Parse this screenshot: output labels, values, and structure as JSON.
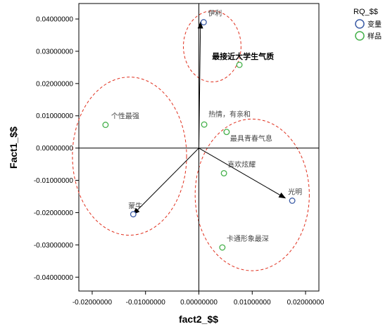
{
  "chart_data": {
    "type": "scatter",
    "xlabel": "fact2_$$",
    "ylabel": "Fact1_$$",
    "xlim": [
      -0.0225,
      0.0225
    ],
    "ylim": [
      -0.0443,
      0.0448
    ],
    "x_ticks": [
      -0.02,
      -0.01,
      0.0,
      0.01,
      0.02
    ],
    "x_tick_labels": [
      "-0.02000000",
      "-0.01000000",
      "0.00000000",
      "0.01000000",
      "0.02000000"
    ],
    "y_ticks": [
      0.04,
      0.03,
      0.02,
      0.01,
      0.0,
      -0.01,
      -0.02,
      -0.03,
      -0.04
    ],
    "y_tick_labels": [
      "0.04000000",
      "0.03000000",
      "0.02000000",
      "0.01000000",
      "0.00000000",
      "-0.01000000",
      "-0.02000000",
      "-0.03000000",
      "-0.04000000"
    ],
    "grid": false,
    "legend": {
      "title": "RQ_$$",
      "position": "top-right",
      "items": [
        {
          "label": "变量",
          "color": "#3b5ba5"
        },
        {
          "label": "样品",
          "color": "#44b04a"
        }
      ]
    },
    "series": [
      {
        "name": "变量",
        "color": "#3b5ba5",
        "points": [
          {
            "x": 0.0009,
            "y": 0.039,
            "label": "伊利"
          },
          {
            "x": -0.0123,
            "y": -0.0205,
            "label": "蒙牛"
          },
          {
            "x": 0.0175,
            "y": -0.0163,
            "label": "光明"
          }
        ]
      },
      {
        "name": "样品",
        "color": "#44b04a",
        "points": [
          {
            "x": 0.0076,
            "y": 0.0258,
            "label": "最接近大学生气质"
          },
          {
            "x": -0.0175,
            "y": 0.0072,
            "label": "个性最强"
          },
          {
            "x": 0.001,
            "y": 0.0073,
            "label": "热情，有亲和"
          },
          {
            "x": 0.0052,
            "y": 0.005,
            "label": "最具青春气息"
          },
          {
            "x": 0.0047,
            "y": -0.0078,
            "label": "喜欢炫耀"
          },
          {
            "x": 0.0044,
            "y": -0.0308,
            "label": "卡通形象最深"
          }
        ]
      }
    ],
    "arrows": [
      {
        "from": [
          0,
          0
        ],
        "to": [
          0.0003,
          0.039
        ]
      },
      {
        "from": [
          0,
          0
        ],
        "to": [
          -0.0123,
          -0.0205
        ]
      },
      {
        "from": [
          0,
          0
        ],
        "to": [
          0.0162,
          -0.0155
        ]
      }
    ],
    "clusters": [
      {
        "cx": 0.0025,
        "cy": 0.0315,
        "rx": 0.0054,
        "ry": 0.011
      },
      {
        "cx": -0.013,
        "cy": -0.0025,
        "rx": 0.0107,
        "ry": 0.0245
      },
      {
        "cx": 0.01,
        "cy": -0.0145,
        "rx": 0.0107,
        "ry": 0.0235
      }
    ]
  }
}
